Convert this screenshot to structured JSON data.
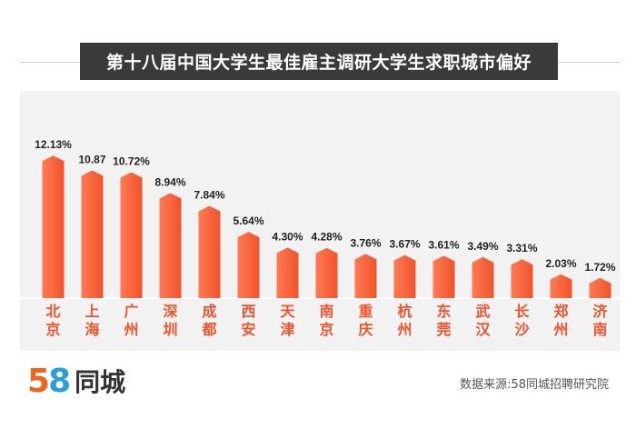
{
  "header": {
    "title": "第十八届中国大学生最佳雇主调研大学生求职城市偏好"
  },
  "footer": {
    "logo_number_5": "5",
    "logo_number_8": "8",
    "logo_text": "同城",
    "source": "数据来源:58同城招聘研究院"
  },
  "colors": {
    "bar": "#f0532b",
    "bar_light": "#ff7a55",
    "banner": "#3a3a3a",
    "chart_bg": "#f2f2f2"
  },
  "chart_data": {
    "type": "bar",
    "title": "第十八届中国大学生最佳雇主调研大学生求职城市偏好",
    "categories": [
      "北京",
      "上海",
      "广州",
      "深圳",
      "成都",
      "西安",
      "天津",
      "南京",
      "重庆",
      "杭州",
      "东莞",
      "武汉",
      "长沙",
      "郑州",
      "济南"
    ],
    "values": [
      12.13,
      10.87,
      10.72,
      8.94,
      7.84,
      5.64,
      4.3,
      4.28,
      3.76,
      3.67,
      3.61,
      3.49,
      3.31,
      2.03,
      1.72
    ],
    "data_labels": [
      "12.13%",
      "10.87",
      "10.72%",
      "8.94%",
      "7.84%",
      "5.64%",
      "4.30%",
      "4.28%",
      "3.76%",
      "3.67%",
      "3.61%",
      "3.49%",
      "3.31%",
      "2.03%",
      "1.72%"
    ],
    "xlabel": "",
    "ylabel": "",
    "ylim": [
      0,
      13
    ],
    "grid": false,
    "legend": "none"
  }
}
